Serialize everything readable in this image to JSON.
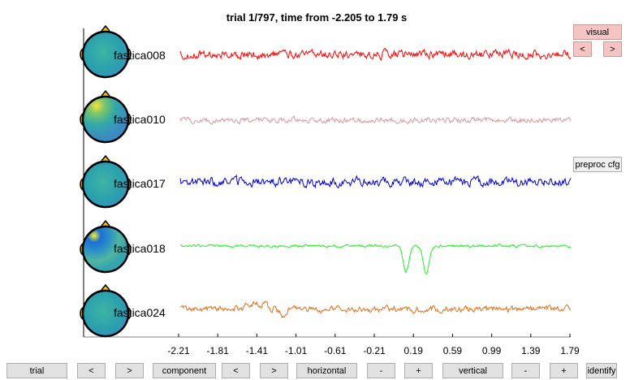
{
  "title": "trial 1/797, time from -2.205 to 1.79 s",
  "colors": {
    "fastica008": "#ff0000",
    "fastica010": "#d9999b",
    "fastica017": "#0000d8",
    "fastica018": "#22ee22",
    "fastica024": "#e07020"
  },
  "channels": [
    {
      "label": "fastica008",
      "topo": "head-topography-icon"
    },
    {
      "label": "fastica010",
      "topo": "head-topography-icon"
    },
    {
      "label": "fastica017",
      "topo": "head-topography-icon"
    },
    {
      "label": "fastica018",
      "topo": "head-topography-icon"
    },
    {
      "label": "fastica024",
      "topo": "head-topography-icon"
    }
  ],
  "x_ticks": [
    "-2.21",
    "-1.81",
    "-1.41",
    "-1.01",
    "-0.61",
    "-0.21",
    "0.19",
    "0.59",
    "0.99",
    "1.39",
    "1.79"
  ],
  "side": {
    "visual_label": "visual",
    "prev_label": "<",
    "next_label": ">",
    "preproc_label": "preproc cfg"
  },
  "bottom": {
    "trial_label": "trial",
    "trial_prev": "<",
    "trial_next": ">",
    "component_label": "component",
    "component_prev": "<",
    "component_next": ">",
    "horizontal_label": "horizontal",
    "horizontal_minus": "-",
    "horizontal_plus": "+",
    "vertical_label": "vertical",
    "vertical_minus": "-",
    "vertical_plus": "+",
    "identify_label": "identify"
  }
}
